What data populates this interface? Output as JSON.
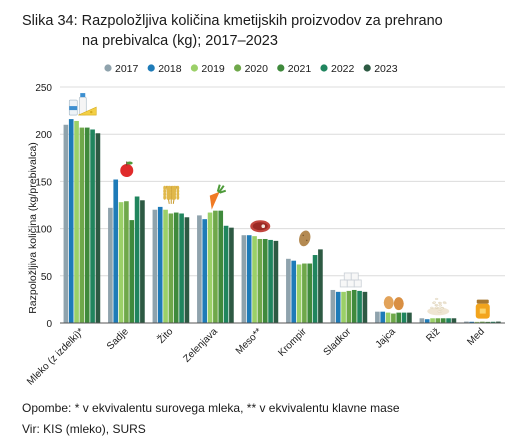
{
  "chart_data": {
    "type": "bar",
    "title_line1": "Slika 34: Razpoložljiva količina kmetijskih proizvodov za prehrano",
    "title_line2": "na prebivalca (kg); 2017–2023",
    "ylabel": "Razpoložljiva količina (kg/prebivalca)",
    "xlabel": "",
    "ylim": [
      0,
      250
    ],
    "yticks": [
      0,
      50,
      100,
      150,
      200,
      250
    ],
    "grid": true,
    "legend_position": "top",
    "categories": [
      "Mleko (z izdelki)*",
      "Sadje",
      "Žito",
      "Zelenjava",
      "Meso**",
      "Krompir",
      "Sladkor",
      "Jajca",
      "Riž",
      "Med"
    ],
    "category_icons": [
      "milk-cheese-icon",
      "apple-icon",
      "wheat-icon",
      "carrot-icon",
      "steak-icon",
      "potato-icon",
      "sugar-cubes-icon",
      "eggs-icon",
      "rice-icon",
      "honey-icon"
    ],
    "series": [
      {
        "name": "2017",
        "color": "#8fa3ad",
        "values": [
          210,
          122,
          120,
          114,
          93,
          68,
          35,
          12,
          5,
          1.5
        ]
      },
      {
        "name": "2018",
        "color": "#1e7bb8",
        "values": [
          216,
          152,
          123,
          110,
          93,
          66,
          33,
          12,
          4,
          1.3
        ]
      },
      {
        "name": "2019",
        "color": "#9bd068",
        "values": [
          214,
          128,
          120,
          117,
          92,
          62,
          33,
          11,
          5,
          1.2
        ]
      },
      {
        "name": "2020",
        "color": "#6fa84a",
        "values": [
          207,
          129,
          116,
          119,
          89,
          63,
          34,
          10,
          5,
          1.4
        ]
      },
      {
        "name": "2021",
        "color": "#3f8a3c",
        "values": [
          207,
          109,
          117,
          119,
          89,
          63,
          35,
          11,
          5,
          1.2
        ]
      },
      {
        "name": "2022",
        "color": "#20855e",
        "values": [
          205,
          134,
          116,
          103,
          88,
          72,
          34,
          11,
          5,
          1.3
        ]
      },
      {
        "name": "2023",
        "color": "#2d5a43",
        "values": [
          201,
          130,
          112,
          101,
          87,
          78,
          33,
          11,
          5,
          1.5
        ]
      }
    ]
  },
  "notes": {
    "line1": "Opombe: * v ekvivalentu surovega mleka, ** v ekvivalentu klavne mase",
    "line2": "Vir: KIS (mleko), SURS"
  }
}
